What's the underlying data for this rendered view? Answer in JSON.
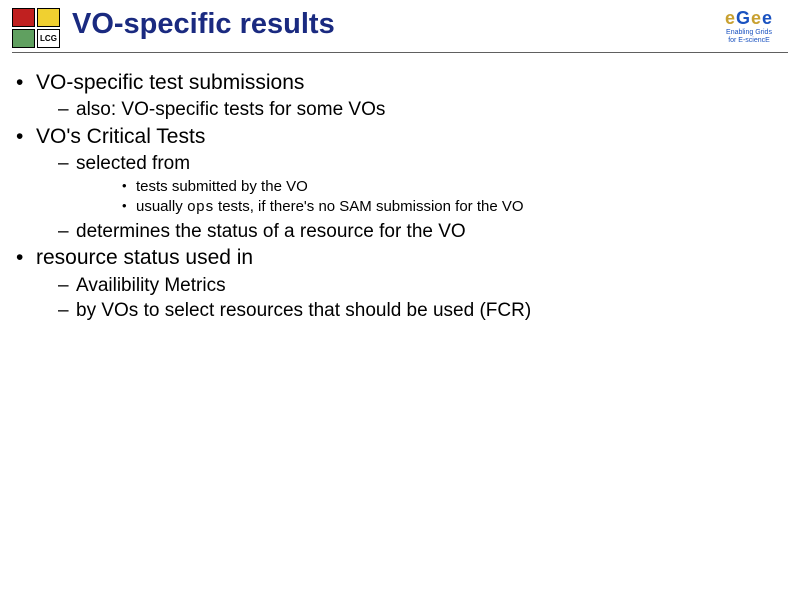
{
  "header": {
    "title": "VO-specific results",
    "lcg_colors": [
      "#c02020",
      "#f0d030",
      "#60a060",
      "#ffffff"
    ],
    "lcg_label": "LCG",
    "egee": {
      "letters": [
        "e",
        "G",
        "e",
        "e"
      ],
      "sub1": "Enabling Grids",
      "sub2": "for E-sciencE"
    }
  },
  "bullets": {
    "b1": "VO-specific test submissions",
    "b1_1": "also: VO-specific tests for some VOs",
    "b2": "VO's Critical Tests",
    "b2_1": "selected from",
    "b2_1_1": "tests submitted by the VO",
    "b2_1_2a": "usually ",
    "b2_1_2b": "ops",
    "b2_1_2c": " tests, if there's no SAM submission for the VO",
    "b2_2": "determines the status of a resource for the VO",
    "b3": "resource status used in",
    "b3_1": "Availibility Metrics",
    "b3_2": "by VOs to select resources that should be used (FCR)"
  }
}
